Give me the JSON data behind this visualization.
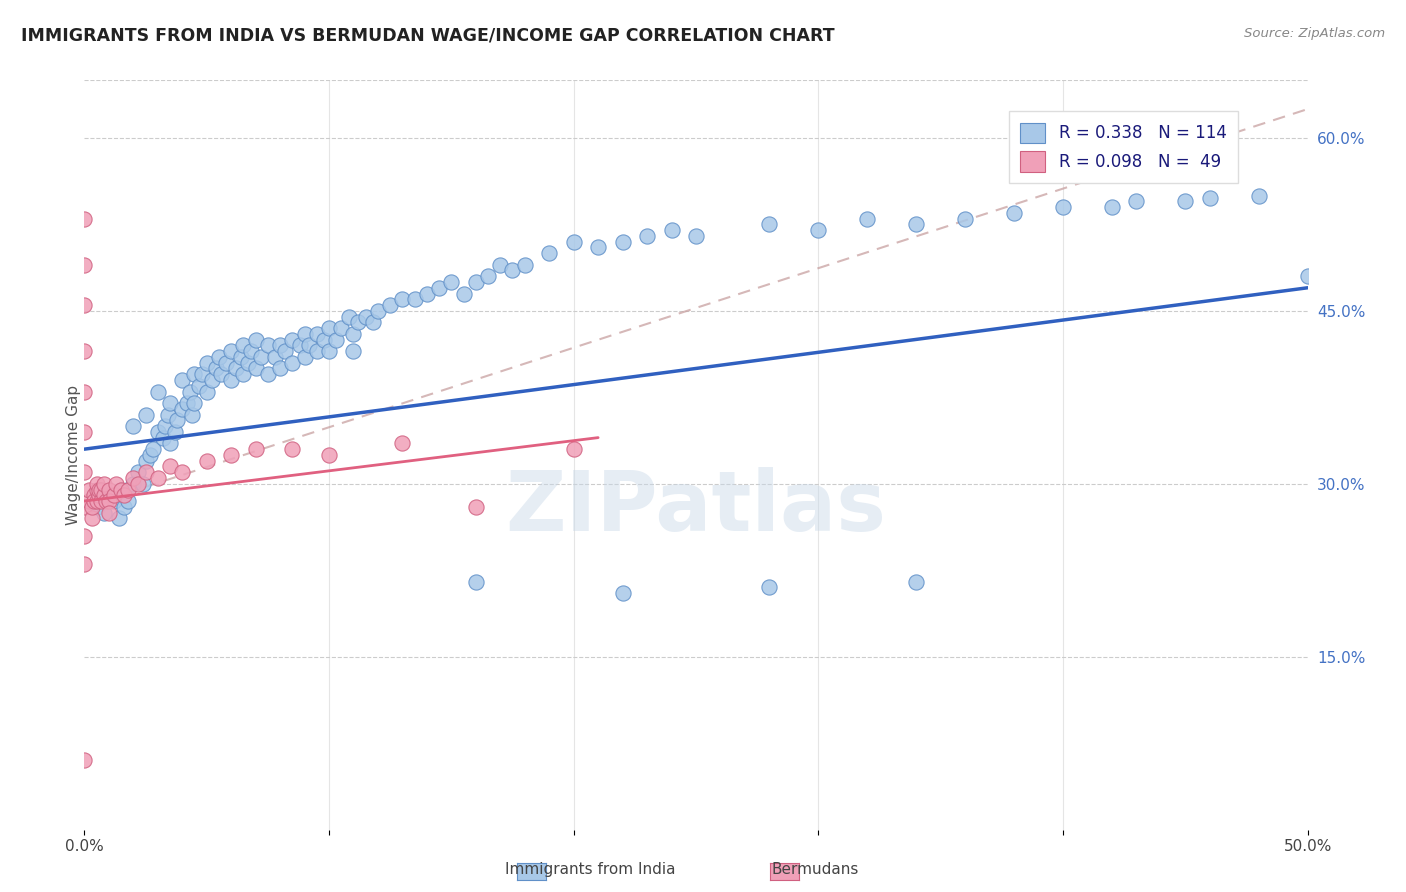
{
  "title": "IMMIGRANTS FROM INDIA VS BERMUDAN WAGE/INCOME GAP CORRELATION CHART",
  "source": "Source: ZipAtlas.com",
  "ylabel": "Wage/Income Gap",
  "xlim": [
    0.0,
    0.5
  ],
  "ylim": [
    0.0,
    0.65
  ],
  "xticks": [
    0.0,
    0.1,
    0.2,
    0.3,
    0.4,
    0.5
  ],
  "xtick_labels": [
    "0.0%",
    "",
    "",
    "",
    "",
    "50.0%"
  ],
  "ytick_labels_right": [
    "15.0%",
    "30.0%",
    "45.0%",
    "60.0%"
  ],
  "yticks_right": [
    0.15,
    0.3,
    0.45,
    0.6
  ],
  "color_india": "#a8c8e8",
  "color_bermuda": "#f0a0b8",
  "color_india_edge": "#6090c8",
  "color_bermuda_edge": "#d06080",
  "color_india_line": "#3060c0",
  "color_bermuda_line": "#e06080",
  "color_dashed": "#c8a0a0",
  "watermark": "ZIPatlas",
  "india_line_x": [
    0.0,
    0.5
  ],
  "india_line_y": [
    0.33,
    0.47
  ],
  "bermuda_line_x": [
    0.0,
    0.21
  ],
  "bermuda_line_y": [
    0.285,
    0.34
  ],
  "dashed_line_x": [
    0.0,
    0.5
  ],
  "dashed_line_y": [
    0.28,
    0.625
  ],
  "india_x": [
    0.005,
    0.008,
    0.01,
    0.012,
    0.014,
    0.015,
    0.016,
    0.018,
    0.02,
    0.02,
    0.022,
    0.024,
    0.025,
    0.025,
    0.027,
    0.028,
    0.03,
    0.03,
    0.032,
    0.033,
    0.034,
    0.035,
    0.035,
    0.037,
    0.038,
    0.04,
    0.04,
    0.042,
    0.043,
    0.044,
    0.045,
    0.045,
    0.047,
    0.048,
    0.05,
    0.05,
    0.052,
    0.054,
    0.055,
    0.056,
    0.058,
    0.06,
    0.06,
    0.062,
    0.064,
    0.065,
    0.065,
    0.067,
    0.068,
    0.07,
    0.07,
    0.072,
    0.075,
    0.075,
    0.078,
    0.08,
    0.08,
    0.082,
    0.085,
    0.085,
    0.088,
    0.09,
    0.09,
    0.092,
    0.095,
    0.095,
    0.098,
    0.1,
    0.1,
    0.103,
    0.105,
    0.108,
    0.11,
    0.11,
    0.112,
    0.115,
    0.118,
    0.12,
    0.125,
    0.13,
    0.135,
    0.14,
    0.145,
    0.15,
    0.155,
    0.16,
    0.165,
    0.17,
    0.175,
    0.18,
    0.19,
    0.2,
    0.21,
    0.22,
    0.23,
    0.24,
    0.25,
    0.28,
    0.3,
    0.32,
    0.34,
    0.36,
    0.38,
    0.4,
    0.42,
    0.43,
    0.45,
    0.46,
    0.48,
    0.5,
    0.16,
    0.22,
    0.28,
    0.34
  ],
  "india_y": [
    0.28,
    0.275,
    0.29,
    0.285,
    0.27,
    0.295,
    0.28,
    0.285,
    0.35,
    0.3,
    0.31,
    0.3,
    0.36,
    0.32,
    0.325,
    0.33,
    0.38,
    0.345,
    0.34,
    0.35,
    0.36,
    0.37,
    0.335,
    0.345,
    0.355,
    0.39,
    0.365,
    0.37,
    0.38,
    0.36,
    0.395,
    0.37,
    0.385,
    0.395,
    0.405,
    0.38,
    0.39,
    0.4,
    0.41,
    0.395,
    0.405,
    0.415,
    0.39,
    0.4,
    0.41,
    0.42,
    0.395,
    0.405,
    0.415,
    0.425,
    0.4,
    0.41,
    0.42,
    0.395,
    0.41,
    0.42,
    0.4,
    0.415,
    0.425,
    0.405,
    0.42,
    0.43,
    0.41,
    0.42,
    0.43,
    0.415,
    0.425,
    0.435,
    0.415,
    0.425,
    0.435,
    0.445,
    0.43,
    0.415,
    0.44,
    0.445,
    0.44,
    0.45,
    0.455,
    0.46,
    0.46,
    0.465,
    0.47,
    0.475,
    0.465,
    0.475,
    0.48,
    0.49,
    0.485,
    0.49,
    0.5,
    0.51,
    0.505,
    0.51,
    0.515,
    0.52,
    0.515,
    0.525,
    0.52,
    0.53,
    0.525,
    0.53,
    0.535,
    0.54,
    0.54,
    0.545,
    0.545,
    0.548,
    0.55,
    0.48,
    0.215,
    0.205,
    0.21,
    0.215
  ],
  "bermuda_x": [
    0.0,
    0.0,
    0.0,
    0.0,
    0.0,
    0.0,
    0.0,
    0.0,
    0.0,
    0.0,
    0.0,
    0.002,
    0.002,
    0.003,
    0.003,
    0.004,
    0.004,
    0.005,
    0.005,
    0.005,
    0.006,
    0.006,
    0.007,
    0.007,
    0.008,
    0.008,
    0.009,
    0.01,
    0.01,
    0.01,
    0.012,
    0.013,
    0.015,
    0.016,
    0.018,
    0.02,
    0.022,
    0.025,
    0.03,
    0.035,
    0.04,
    0.05,
    0.06,
    0.07,
    0.085,
    0.1,
    0.13,
    0.16,
    0.2
  ],
  "bermuda_y": [
    0.53,
    0.49,
    0.455,
    0.415,
    0.38,
    0.345,
    0.31,
    0.28,
    0.255,
    0.23,
    0.06,
    0.285,
    0.295,
    0.27,
    0.28,
    0.29,
    0.285,
    0.295,
    0.3,
    0.285,
    0.29,
    0.295,
    0.285,
    0.295,
    0.29,
    0.3,
    0.285,
    0.295,
    0.285,
    0.275,
    0.29,
    0.3,
    0.295,
    0.29,
    0.295,
    0.305,
    0.3,
    0.31,
    0.305,
    0.315,
    0.31,
    0.32,
    0.325,
    0.33,
    0.33,
    0.325,
    0.335,
    0.28,
    0.33
  ]
}
